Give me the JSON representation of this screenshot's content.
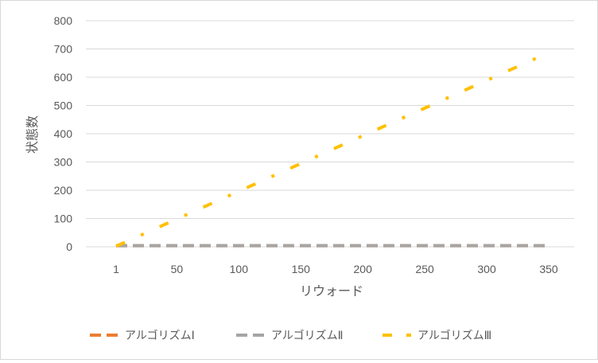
{
  "chart_data": {
    "type": "line",
    "xlabel": "リウォード",
    "ylabel": "状態数",
    "ylim": [
      0,
      800
    ],
    "yticks": [
      0,
      100,
      200,
      300,
      400,
      500,
      600,
      700,
      800
    ],
    "xlim": [
      1,
      350
    ],
    "xticks": [
      1,
      50,
      100,
      150,
      200,
      250,
      300,
      350
    ],
    "grid": true,
    "legend_position": "bottom",
    "series": [
      {
        "name": "アルゴリズムⅠ",
        "color": "#ED7D31",
        "style": "dash",
        "x": [
          1,
          350
        ],
        "y": [
          4,
          4
        ]
      },
      {
        "name": "アルゴリズムⅡ",
        "color": "#A5A5A5",
        "style": "dash",
        "x": [
          1,
          350
        ],
        "y": [
          4,
          4
        ]
      },
      {
        "name": "アルゴリズムⅢ",
        "color": "#FFC000",
        "style": "dashdot",
        "x": [
          1,
          350
        ],
        "y": [
          2,
          687
        ]
      }
    ]
  }
}
